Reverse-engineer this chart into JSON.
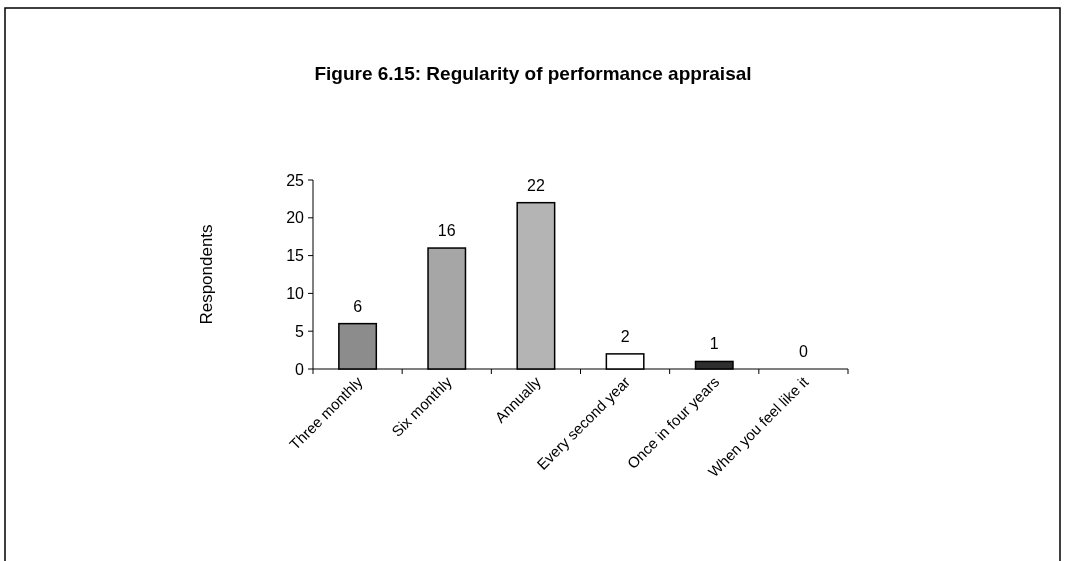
{
  "chart_data": {
    "type": "bar",
    "title": "Figure 6.15: Regularity of performance appraisal",
    "ylabel": "Respondents",
    "categories": [
      "Three monthly",
      "Six monthly",
      "Annually",
      "Every second year",
      "Once in four years",
      "When you feel like it"
    ],
    "values": [
      6,
      16,
      22,
      2,
      1,
      0
    ],
    "colors": [
      "#8c8c8c",
      "#a6a6a6",
      "#b4b4b4",
      "#ffffff",
      "#2e2e2e",
      "#cccccc"
    ],
    "ylim": [
      0,
      25
    ],
    "yticks": [
      0,
      5,
      10,
      15,
      20,
      25
    ],
    "data_labels": true
  }
}
